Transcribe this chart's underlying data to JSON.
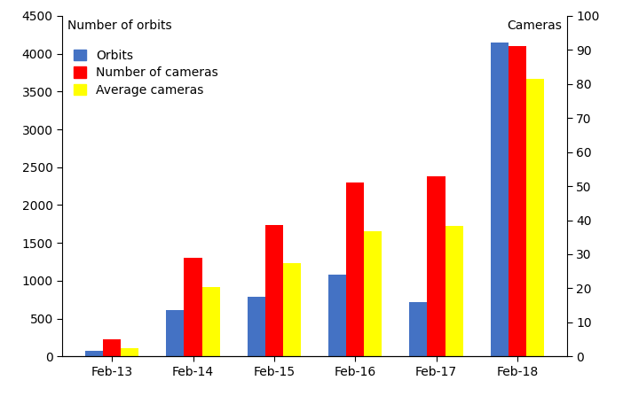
{
  "categories": [
    "Feb-13",
    "Feb-14",
    "Feb-15",
    "Feb-16",
    "Feb-17",
    "Feb-18"
  ],
  "orbits": [
    75,
    610,
    790,
    1075,
    720,
    4150
  ],
  "num_cameras": [
    230,
    1305,
    1740,
    2300,
    2375,
    4100
  ],
  "avg_cameras": [
    110,
    920,
    1235,
    1650,
    1730,
    3670
  ],
  "left_axis_label": "Number of orbits",
  "right_axis_label": "Cameras",
  "ylim_left": [
    0,
    4500
  ],
  "ylim_right": [
    0,
    100
  ],
  "yticks_left": [
    0,
    500,
    1000,
    1500,
    2000,
    2500,
    3000,
    3500,
    4000,
    4500
  ],
  "yticks_right": [
    0,
    10,
    20,
    30,
    40,
    50,
    60,
    70,
    80,
    90,
    100
  ],
  "bar_color_orbits": "#4472C4",
  "bar_color_cameras": "#FF0000",
  "bar_color_avg": "#FFFF00",
  "legend_labels": [
    "Orbits",
    "Number of cameras",
    "Average cameras"
  ],
  "bar_width": 0.22,
  "figsize": [
    7.02,
    4.47
  ],
  "dpi": 100,
  "fontsize": 10
}
